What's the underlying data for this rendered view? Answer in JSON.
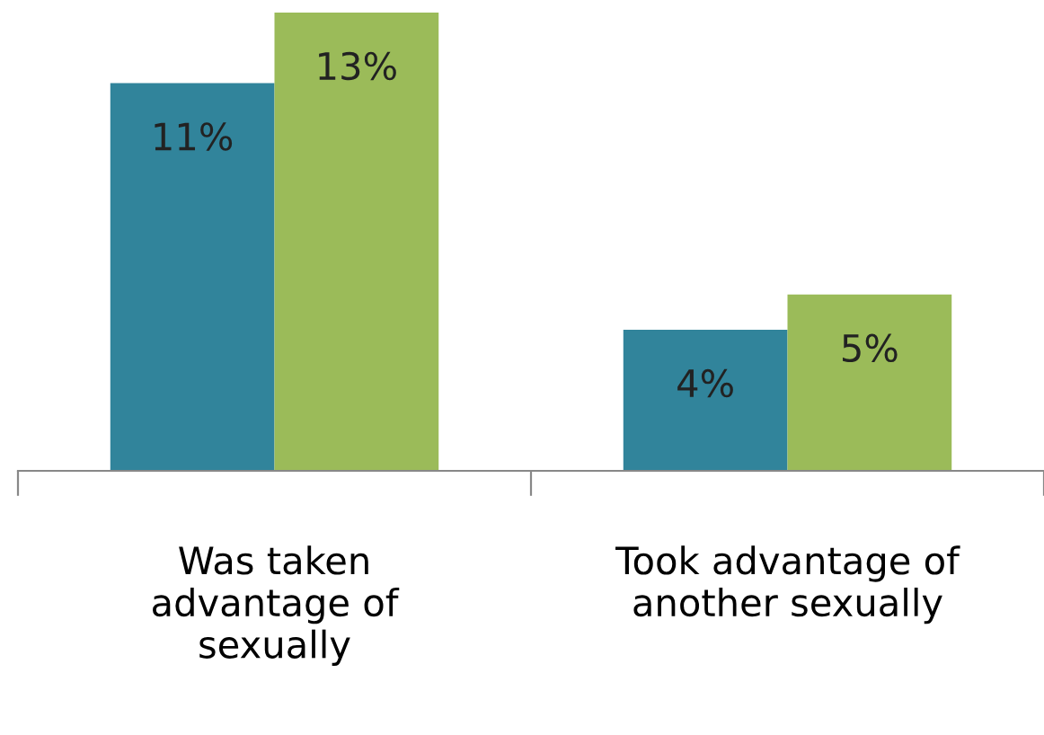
{
  "chart_data": {
    "type": "bar",
    "categories": [
      "Was taken advantage of sexually",
      "Took advantage of another sexually"
    ],
    "series": [
      {
        "color": "#31849b",
        "values": [
          11,
          4
        ],
        "value_labels": [
          "11%",
          "4%"
        ]
      },
      {
        "color": "#9bbb59",
        "values": [
          13,
          5
        ],
        "value_labels": [
          "13%",
          "5%"
        ]
      }
    ],
    "grid": false,
    "legend": false
  }
}
